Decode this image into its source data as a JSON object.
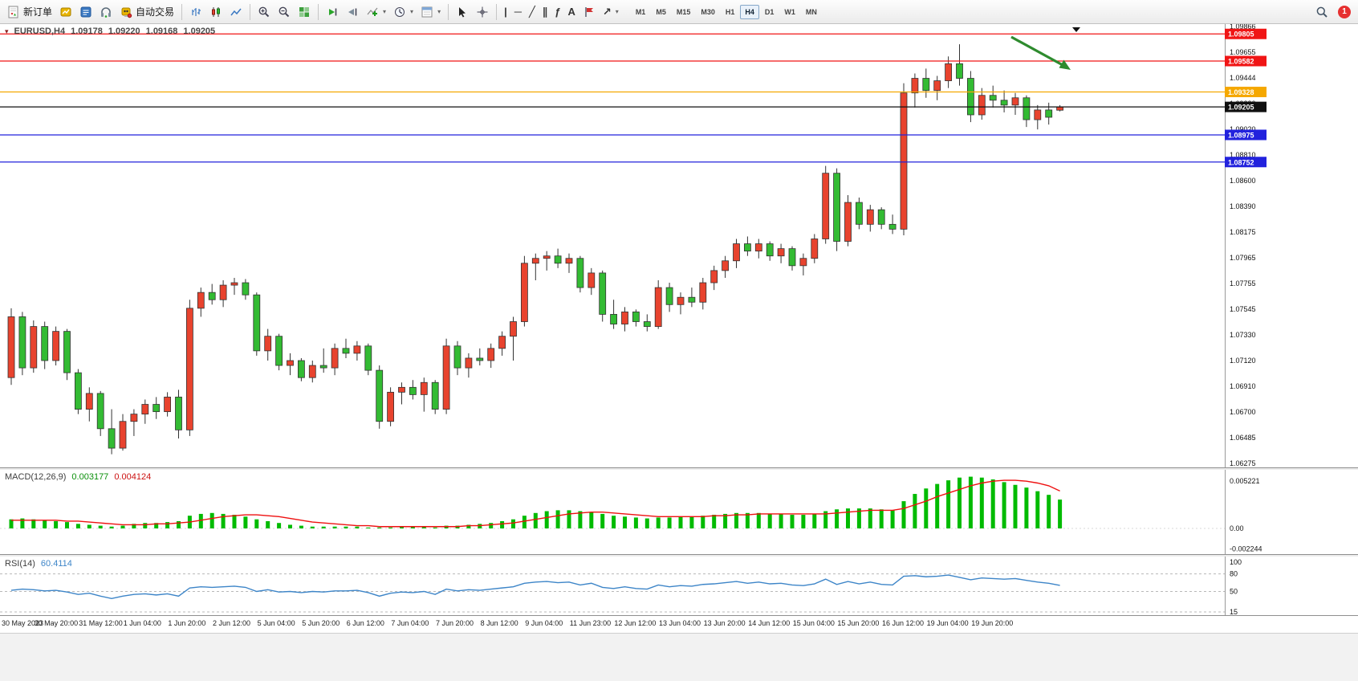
{
  "toolbar": {
    "new_order": "新订单",
    "autotrading": "自动交易",
    "timeframes": [
      "M1",
      "M5",
      "M15",
      "M30",
      "H1",
      "H4",
      "D1",
      "W1",
      "MN"
    ],
    "active_timeframe": "H4",
    "notification_count": "1",
    "glyphs": {
      "chevron": "▾",
      "context_arrow": "▾",
      "vertical_line": "|",
      "horizontal_line": "─",
      "trendline": "╱",
      "channel": "∥",
      "fibonacci": "ƒ",
      "text_tool": "A",
      "arrow_tool": "↗"
    }
  },
  "chart_data": [
    {
      "type": "candlestick",
      "symbol_period": "EURUSD,H4",
      "open": "1.09178",
      "high": "1.09220",
      "low": "1.09168",
      "close": "1.09205",
      "bull_color": "#e8432e",
      "bear_color": "#33bb33",
      "wick_color": "#333333",
      "arrow_color": "#2e8b2e",
      "ylim": [
        1.06275,
        1.09866
      ],
      "y_ticks": [
        "1.09866",
        "1.09655",
        "1.09444",
        "1.09230",
        "1.09020",
        "1.08810",
        "1.08600",
        "1.08390",
        "1.08175",
        "1.07965",
        "1.07755",
        "1.07545",
        "1.07330",
        "1.07120",
        "1.06910",
        "1.06700",
        "1.06485",
        "1.06275"
      ],
      "hlines": [
        {
          "price": 1.09805,
          "label": "1.09805",
          "color": "#f01515"
        },
        {
          "price": 1.09582,
          "label": "1.09582",
          "color": "#f01515"
        },
        {
          "price": 1.09328,
          "label": "1.09328",
          "color": "#f5a800"
        },
        {
          "price": 1.09205,
          "label": "1.09205",
          "color": "#101010"
        },
        {
          "price": 1.08975,
          "label": "1.08975",
          "color": "#2222dd"
        },
        {
          "price": 1.08752,
          "label": "1.08752",
          "color": "#2222dd"
        }
      ],
      "x_label_every": 4,
      "x_labels": [
        "30 May 2023",
        "30 May 20:00",
        "31 May 12:00",
        "1 Jun 04:00",
        "1 Jun 20:00",
        "2 Jun 12:00",
        "5 Jun 04:00",
        "5 Jun 20:00",
        "6 Jun 12:00",
        "7 Jun 04:00",
        "7 Jun 20:00",
        "8 Jun 12:00",
        "9 Jun 04:00",
        "11 Jun 23:00",
        "12 Jun 12:00",
        "13 Jun 04:00",
        "13 Jun 20:00",
        "14 Jun 12:00",
        "15 Jun 04:00",
        "15 Jun 20:00",
        "16 Jun 12:00",
        "19 Jun 04:00",
        "19 Jun 20:00"
      ],
      "candles": [
        [
          1.0698,
          1.0755,
          1.0692,
          1.0748
        ],
        [
          1.0748,
          1.0752,
          1.07,
          1.0706
        ],
        [
          1.0706,
          1.0745,
          1.0702,
          1.074
        ],
        [
          1.074,
          1.0744,
          1.0705,
          1.0712
        ],
        [
          1.0712,
          1.074,
          1.0708,
          1.0736
        ],
        [
          1.0736,
          1.0738,
          1.0696,
          1.0702
        ],
        [
          1.0702,
          1.0705,
          1.0668,
          1.0672
        ],
        [
          1.0672,
          1.069,
          1.0662,
          1.0685
        ],
        [
          1.0685,
          1.0687,
          1.065,
          1.0656
        ],
        [
          1.0656,
          1.0672,
          1.0635,
          1.064
        ],
        [
          1.064,
          1.0668,
          1.0638,
          1.0662
        ],
        [
          1.0662,
          1.0672,
          1.065,
          1.0668
        ],
        [
          1.0668,
          1.068,
          1.066,
          1.0676
        ],
        [
          1.0676,
          1.0682,
          1.0664,
          1.067
        ],
        [
          1.067,
          1.0686,
          1.0666,
          1.0682
        ],
        [
          1.0682,
          1.0688,
          1.0648,
          1.0655
        ],
        [
          1.0655,
          1.0762,
          1.065,
          1.0755
        ],
        [
          1.0755,
          1.0772,
          1.0748,
          1.0768
        ],
        [
          1.0768,
          1.0775,
          1.0758,
          1.0762
        ],
        [
          1.0762,
          1.0778,
          1.0756,
          1.0774
        ],
        [
          1.0774,
          1.078,
          1.0766,
          1.0776
        ],
        [
          1.0776,
          1.0779,
          1.0762,
          1.0766
        ],
        [
          1.0766,
          1.0768,
          1.0716,
          1.072
        ],
        [
          1.072,
          1.0738,
          1.0712,
          1.0732
        ],
        [
          1.0732,
          1.0734,
          1.0704,
          1.0708
        ],
        [
          1.0708,
          1.0718,
          1.07,
          1.0712
        ],
        [
          1.0712,
          1.0714,
          1.0695,
          1.0698
        ],
        [
          1.0698,
          1.0712,
          1.0694,
          1.0708
        ],
        [
          1.0708,
          1.0722,
          1.0702,
          1.0706
        ],
        [
          1.0706,
          1.0726,
          1.07,
          1.0722
        ],
        [
          1.0722,
          1.073,
          1.0714,
          1.0718
        ],
        [
          1.0718,
          1.0728,
          1.0712,
          1.0724
        ],
        [
          1.0724,
          1.0726,
          1.07,
          1.0704
        ],
        [
          1.0704,
          1.0708,
          1.0656,
          1.0662
        ],
        [
          1.0662,
          1.069,
          1.0658,
          1.0686
        ],
        [
          1.0686,
          1.0694,
          1.0676,
          1.069
        ],
        [
          1.069,
          1.0696,
          1.068,
          1.0684
        ],
        [
          1.0684,
          1.0698,
          1.067,
          1.0694
        ],
        [
          1.0694,
          1.0696,
          1.0668,
          1.0672
        ],
        [
          1.0672,
          1.073,
          1.0668,
          1.0724
        ],
        [
          1.0724,
          1.0728,
          1.07,
          1.0706
        ],
        [
          1.0706,
          1.0718,
          1.0698,
          1.0714
        ],
        [
          1.0714,
          1.0722,
          1.0708,
          1.0712
        ],
        [
          1.0712,
          1.0726,
          1.0706,
          1.0722
        ],
        [
          1.0722,
          1.0736,
          1.0716,
          1.0732
        ],
        [
          1.0732,
          1.0748,
          1.0712,
          1.0744
        ],
        [
          1.0744,
          1.0798,
          1.074,
          1.0792
        ],
        [
          1.0792,
          1.08,
          1.0778,
          1.0796
        ],
        [
          1.0796,
          1.0802,
          1.0786,
          1.0798
        ],
        [
          1.0798,
          1.0804,
          1.0788,
          1.0792
        ],
        [
          1.0792,
          1.08,
          1.0784,
          1.0796
        ],
        [
          1.0796,
          1.0798,
          1.0768,
          1.0772
        ],
        [
          1.0772,
          1.0788,
          1.0766,
          1.0784
        ],
        [
          1.0784,
          1.0786,
          1.0744,
          1.075
        ],
        [
          1.075,
          1.0762,
          1.0738,
          1.0742
        ],
        [
          1.0742,
          1.0756,
          1.0736,
          1.0752
        ],
        [
          1.0752,
          1.0754,
          1.074,
          1.0744
        ],
        [
          1.0744,
          1.075,
          1.0736,
          1.074
        ],
        [
          1.074,
          1.0778,
          1.0738,
          1.0772
        ],
        [
          1.0772,
          1.0776,
          1.0752,
          1.0758
        ],
        [
          1.0758,
          1.0768,
          1.075,
          1.0764
        ],
        [
          1.0764,
          1.0772,
          1.0756,
          1.076
        ],
        [
          1.076,
          1.078,
          1.0754,
          1.0776
        ],
        [
          1.0776,
          1.079,
          1.077,
          1.0786
        ],
        [
          1.0786,
          1.0798,
          1.078,
          1.0794
        ],
        [
          1.0794,
          1.0812,
          1.0788,
          1.0808
        ],
        [
          1.0808,
          1.0814,
          1.0798,
          1.0802
        ],
        [
          1.0802,
          1.0812,
          1.0796,
          1.0808
        ],
        [
          1.0808,
          1.081,
          1.0794,
          1.0798
        ],
        [
          1.0798,
          1.0808,
          1.0792,
          1.0804
        ],
        [
          1.0804,
          1.0806,
          1.0786,
          1.079
        ],
        [
          1.079,
          1.08,
          1.0782,
          1.0796
        ],
        [
          1.0796,
          1.0816,
          1.0792,
          1.0812
        ],
        [
          1.0812,
          1.0872,
          1.0808,
          1.0866
        ],
        [
          1.0866,
          1.087,
          1.0802,
          1.081
        ],
        [
          1.081,
          1.0848,
          1.0806,
          1.0842
        ],
        [
          1.0842,
          1.0846,
          1.082,
          1.0824
        ],
        [
          1.0824,
          1.084,
          1.0818,
          1.0836
        ],
        [
          1.0836,
          1.0838,
          1.082,
          1.0824
        ],
        [
          1.0824,
          1.0832,
          1.0816,
          1.082
        ],
        [
          1.082,
          1.094,
          1.0815,
          1.0932
        ],
        [
          1.0932,
          1.0948,
          1.092,
          1.0944
        ],
        [
          1.0944,
          1.0952,
          1.0928,
          1.0934
        ],
        [
          1.0934,
          1.0946,
          1.0926,
          1.0942
        ],
        [
          1.0942,
          1.0962,
          1.0936,
          1.0956
        ],
        [
          1.0956,
          1.0972,
          1.0938,
          1.0944
        ],
        [
          1.0944,
          1.095,
          1.0908,
          1.0914
        ],
        [
          1.0914,
          1.0936,
          1.091,
          1.093
        ],
        [
          1.093,
          1.0938,
          1.092,
          1.0926
        ],
        [
          1.0926,
          1.0934,
          1.0916,
          1.0922
        ],
        [
          1.0922,
          1.0932,
          1.0914,
          1.0928
        ],
        [
          1.0928,
          1.093,
          1.0904,
          1.091
        ],
        [
          1.091,
          1.0922,
          1.0902,
          1.0918
        ],
        [
          1.0918,
          1.0924,
          1.0906,
          1.0912
        ],
        [
          1.09178,
          1.0922,
          1.09168,
          1.09205
        ]
      ]
    },
    {
      "type": "bar",
      "name": "MACD(12,26,9)",
      "main_value": "0.003177",
      "signal_value": "0.004124",
      "histogram_color": "#00bb00",
      "signal_color": "#ee1111",
      "y_ticks": [
        "0.005221",
        "0.00",
        "-0.002244"
      ],
      "histogram": [
        0.001,
        0.0011,
        0.001,
        0.0009,
        0.0008,
        0.0007,
        0.0005,
        0.0004,
        0.0003,
        0.0002,
        0.0003,
        0.0005,
        0.0006,
        0.0006,
        0.0007,
        0.0008,
        0.0014,
        0.0016,
        0.0017,
        0.0016,
        0.0015,
        0.0013,
        0.001,
        0.0008,
        0.0006,
        0.0004,
        0.0003,
        0.0002,
        0.0002,
        0.0002,
        0.0002,
        0.0002,
        0.0001,
        0.0001,
        0.0001,
        0.0002,
        0.0002,
        0.0002,
        0.0001,
        0.0003,
        0.0003,
        0.0004,
        0.0005,
        0.0006,
        0.0008,
        0.001,
        0.0014,
        0.0017,
        0.0019,
        0.002,
        0.002,
        0.0019,
        0.0018,
        0.0016,
        0.0014,
        0.0013,
        0.0012,
        0.0011,
        0.0012,
        0.0012,
        0.0013,
        0.0013,
        0.0014,
        0.0015,
        0.0016,
        0.0017,
        0.0017,
        0.0017,
        0.0016,
        0.0016,
        0.0015,
        0.0015,
        0.0016,
        0.0019,
        0.0021,
        0.0022,
        0.0022,
        0.0022,
        0.0021,
        0.002,
        0.003,
        0.0038,
        0.0044,
        0.0049,
        0.0053,
        0.0056,
        0.0057,
        0.0056,
        0.0054,
        0.0051,
        0.0048,
        0.0045,
        0.0041,
        0.0037,
        0.003177
      ],
      "signal": [
        0.0009,
        0.0009,
        0.0009,
        0.0009,
        0.0009,
        0.0008,
        0.0008,
        0.0007,
        0.0006,
        0.0005,
        0.0004,
        0.0004,
        0.0004,
        0.0005,
        0.0005,
        0.0006,
        0.0007,
        0.0009,
        0.0011,
        0.0013,
        0.0014,
        0.0015,
        0.0015,
        0.0014,
        0.0013,
        0.0011,
        0.0009,
        0.0007,
        0.0006,
        0.0005,
        0.0004,
        0.0003,
        0.0003,
        0.0002,
        0.0002,
        0.0002,
        0.0002,
        0.0002,
        0.0002,
        0.0002,
        0.0002,
        0.0003,
        0.0003,
        0.0004,
        0.0005,
        0.0006,
        0.0008,
        0.001,
        0.0012,
        0.0014,
        0.0016,
        0.0017,
        0.0018,
        0.0018,
        0.0017,
        0.0016,
        0.0015,
        0.0014,
        0.0013,
        0.0013,
        0.0013,
        0.0013,
        0.0013,
        0.0014,
        0.0014,
        0.0015,
        0.0015,
        0.0016,
        0.0016,
        0.0016,
        0.0016,
        0.0016,
        0.0016,
        0.0016,
        0.0017,
        0.0018,
        0.0019,
        0.002,
        0.002,
        0.002,
        0.0022,
        0.0026,
        0.003,
        0.0035,
        0.0039,
        0.0043,
        0.0047,
        0.005,
        0.0052,
        0.0053,
        0.0053,
        0.0052,
        0.005,
        0.0047,
        0.004124
      ]
    },
    {
      "type": "line",
      "name": "RSI(14)",
      "value": "60.4114",
      "line_color": "#3d85c8",
      "y_ticks": [
        "100",
        "80",
        "50",
        "15"
      ],
      "levels": [
        80,
        50,
        15
      ],
      "values": [
        52,
        54,
        53,
        51,
        52,
        49,
        45,
        47,
        42,
        38,
        42,
        45,
        46,
        44,
        46,
        42,
        56,
        58,
        57,
        58,
        59,
        57,
        50,
        53,
        49,
        50,
        48,
        50,
        49,
        51,
        51,
        52,
        48,
        42,
        47,
        49,
        48,
        50,
        45,
        54,
        51,
        53,
        52,
        54,
        56,
        58,
        64,
        66,
        67,
        65,
        66,
        61,
        64,
        57,
        55,
        58,
        55,
        54,
        61,
        58,
        60,
        59,
        62,
        63,
        65,
        67,
        64,
        66,
        63,
        64,
        61,
        60,
        63,
        71,
        62,
        67,
        63,
        66,
        62,
        61,
        76,
        77,
        75,
        76,
        78,
        74,
        70,
        73,
        72,
        71,
        72,
        69,
        66,
        64,
        60.4114
      ]
    }
  ]
}
